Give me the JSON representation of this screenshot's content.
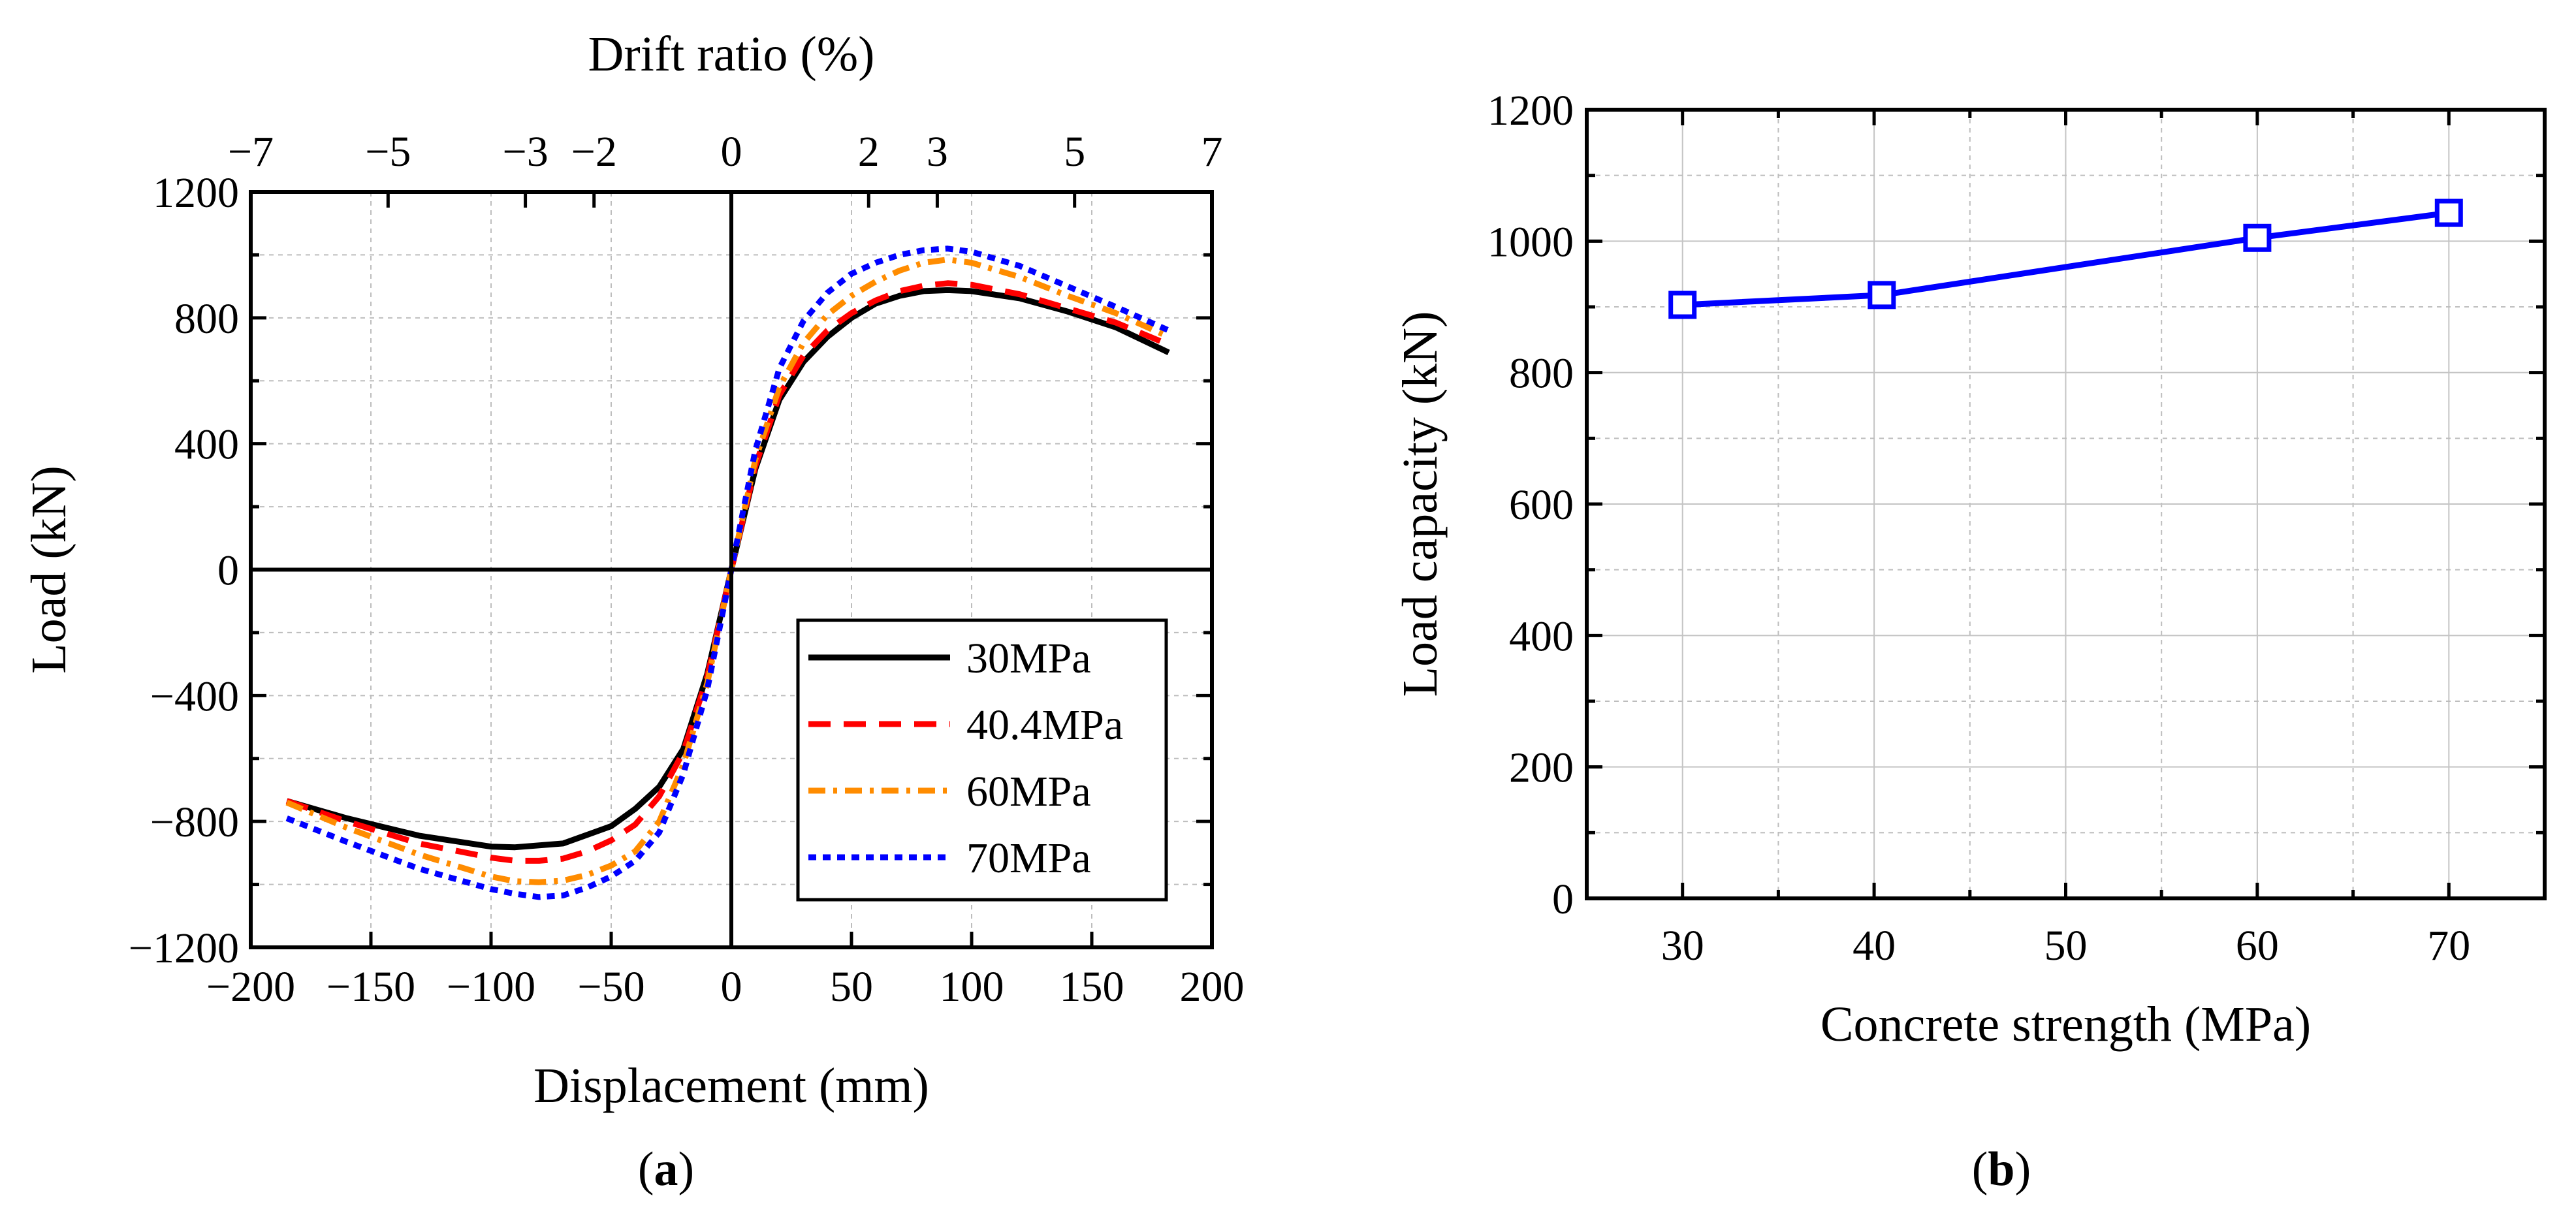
{
  "chart_data": [
    {
      "type": "line",
      "panel_label": "a",
      "title": "",
      "xlabel": "Displacement (mm)",
      "ylabel": "Load (kN)",
      "x2label": "Drift ratio (%)",
      "xlim": [
        -200,
        200
      ],
      "ylim": [
        -1200,
        1200
      ],
      "x_ticks": [
        "−200",
        "−150",
        "−100",
        "−50",
        "0",
        "50",
        "100",
        "150",
        "200"
      ],
      "x_tick_values": [
        -200,
        -150,
        -100,
        -50,
        0,
        50,
        100,
        150,
        200
      ],
      "y_ticks": [
        "−1200",
        "−800",
        "−400",
        "0",
        "400",
        "800",
        "1200"
      ],
      "y_tick_values": [
        -1200,
        -800,
        -400,
        0,
        400,
        800,
        1200
      ],
      "x2_ticks": [
        "−7",
        "−5",
        "−3",
        "−2",
        "0",
        "2",
        "3",
        "5",
        "7"
      ],
      "x2_tick_values": [
        -7,
        -5,
        -3,
        -2,
        0,
        2,
        3,
        5,
        7
      ],
      "x2_scale_mm_per_percent": 28.57,
      "grid": true,
      "legend_position": "bottom-right",
      "series": [
        {
          "name": "30MPa",
          "color": "#000000",
          "style": "solid",
          "x": [
            -185,
            -160,
            -130,
            -100,
            -90,
            -70,
            -50,
            -40,
            -30,
            -20,
            -10,
            0,
            10,
            20,
            30,
            40,
            50,
            60,
            70,
            80,
            90,
            100,
            120,
            140,
            160,
            182
          ],
          "y": [
            -735,
            -790,
            -845,
            -880,
            -882,
            -870,
            -815,
            -760,
            -690,
            -570,
            -330,
            0,
            320,
            540,
            660,
            740,
            800,
            845,
            870,
            885,
            888,
            885,
            862,
            820,
            770,
            690
          ]
        },
        {
          "name": "40.4MPa",
          "color": "#ff0000",
          "style": "dashed",
          "x": [
            -185,
            -160,
            -130,
            -100,
            -90,
            -80,
            -70,
            -60,
            -50,
            -40,
            -30,
            -20,
            -10,
            0,
            10,
            20,
            30,
            40,
            50,
            60,
            70,
            80,
            90,
            100,
            120,
            140,
            160,
            182
          ],
          "y": [
            -735,
            -800,
            -870,
            -915,
            -925,
            -925,
            -918,
            -895,
            -860,
            -810,
            -720,
            -580,
            -340,
            0,
            330,
            555,
            680,
            760,
            815,
            855,
            885,
            902,
            910,
            905,
            875,
            830,
            785,
            715
          ]
        },
        {
          "name": "60MPa",
          "color": "#ff8c00",
          "style": "dashdot",
          "x": [
            -185,
            -160,
            -130,
            -100,
            -90,
            -80,
            -70,
            -60,
            -50,
            -40,
            -30,
            -20,
            -10,
            0,
            10,
            20,
            30,
            40,
            50,
            60,
            70,
            80,
            90,
            100,
            120,
            140,
            160,
            182
          ],
          "y": [
            -740,
            -820,
            -905,
            -975,
            -990,
            -993,
            -988,
            -970,
            -940,
            -895,
            -800,
            -620,
            -360,
            0,
            350,
            580,
            720,
            810,
            870,
            915,
            950,
            975,
            985,
            975,
            930,
            870,
            815,
            740
          ]
        },
        {
          "name": "70MPa",
          "color": "#0000ff",
          "style": "dotted",
          "x": [
            -185,
            -160,
            -130,
            -100,
            -90,
            -80,
            -70,
            -60,
            -50,
            -40,
            -30,
            -20,
            -10,
            0,
            10,
            20,
            30,
            40,
            50,
            60,
            70,
            80,
            90,
            100,
            120,
            140,
            160,
            182
          ],
          "y": [
            -790,
            -865,
            -950,
            -1015,
            -1030,
            -1040,
            -1035,
            -1010,
            -975,
            -925,
            -835,
            -650,
            -380,
            0,
            380,
            640,
            790,
            880,
            940,
            975,
            1000,
            1015,
            1020,
            1010,
            965,
            900,
            835,
            760
          ]
        }
      ]
    },
    {
      "type": "line",
      "panel_label": "b",
      "title": "",
      "xlabel": "Concrete strength (MPa)",
      "ylabel": "Load capacity (kN)",
      "xlim": [
        25,
        75
      ],
      "ylim": [
        0,
        1200
      ],
      "x_ticks": [
        "30",
        "40",
        "50",
        "60",
        "70"
      ],
      "x_tick_values": [
        30,
        40,
        50,
        60,
        70
      ],
      "y_ticks": [
        "0",
        "200",
        "400",
        "600",
        "800",
        "1000",
        "1200"
      ],
      "y_tick_values": [
        0,
        200,
        400,
        600,
        800,
        1000,
        1200
      ],
      "grid": true,
      "series": [
        {
          "name": "Load capacity",
          "color": "#0000ff",
          "marker": "open-square",
          "x": [
            30,
            40.4,
            60,
            70
          ],
          "y": [
            903,
            918,
            1005,
            1043
          ]
        }
      ]
    }
  ]
}
